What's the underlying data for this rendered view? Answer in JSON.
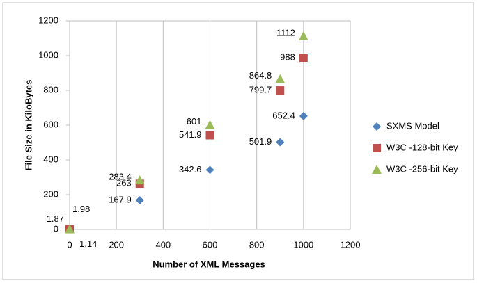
{
  "chart_data": {
    "type": "scatter",
    "xlabel": "Number of XML Messages",
    "ylabel": "File Size in KiloBytes",
    "x": [
      0,
      300,
      600,
      900,
      1000
    ],
    "series": [
      {
        "name": "SXMS Model",
        "color": "#4f81bd",
        "marker": "diamond",
        "values": [
          1.14,
          167.9,
          342.6,
          501.9,
          652.4
        ]
      },
      {
        "name": "W3C -128-bit Key",
        "color": "#c0504d",
        "marker": "square",
        "values": [
          1.87,
          263,
          541.9,
          799.7,
          988
        ]
      },
      {
        "name": "W3C -256-bit Key",
        "color": "#9bbb59",
        "marker": "triangle",
        "values": [
          1.98,
          283.4,
          601,
          864.8,
          1112
        ]
      }
    ],
    "xlim": [
      0,
      1200
    ],
    "xticks": [
      0,
      200,
      400,
      600,
      800,
      1000,
      1200
    ],
    "ylim": [
      0,
      1200
    ],
    "yticks": [
      0,
      200,
      400,
      600,
      800,
      1000,
      1200
    ],
    "grid": "x",
    "legend": "right"
  }
}
